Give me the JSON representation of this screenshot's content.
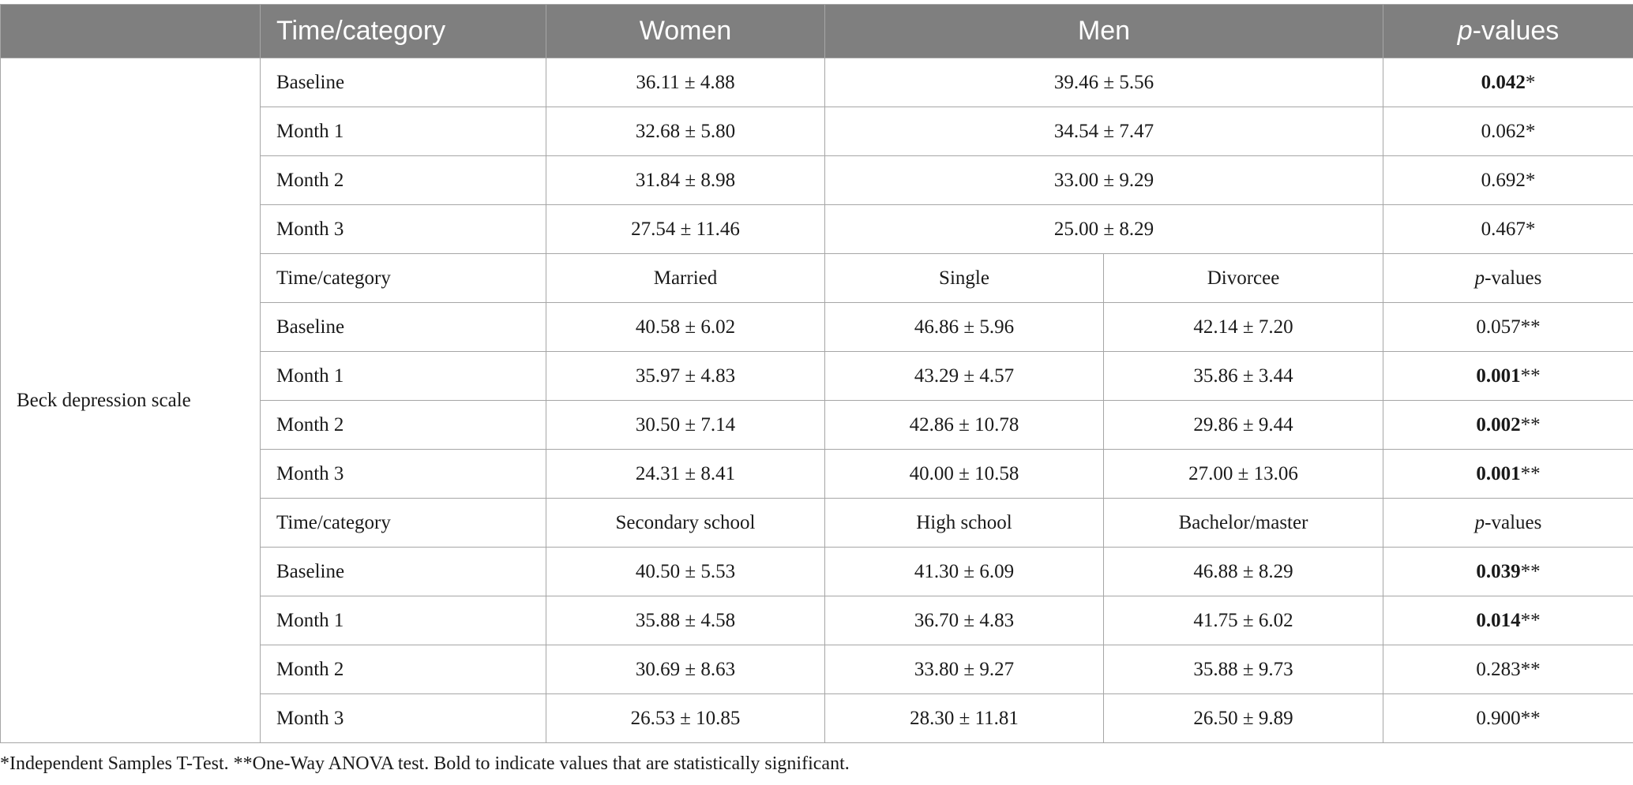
{
  "header": {
    "time_category": "Time/category",
    "col_women": "Women",
    "col_men": "Men",
    "p_italic": "p",
    "p_rest": "-values"
  },
  "scale_label": "Beck depression scale",
  "section1": {
    "rows": [
      {
        "time": "Baseline",
        "women": "36.11 ± 4.88",
        "men": "39.46 ± 5.56",
        "p_num": "0.042",
        "p_mark": "*",
        "bold": true
      },
      {
        "time": "Month 1",
        "women": "32.68 ± 5.80",
        "men": "34.54 ± 7.47",
        "p_num": "0.062",
        "p_mark": "*",
        "bold": false
      },
      {
        "time": "Month 2",
        "women": "31.84 ± 8.98",
        "men": "33.00 ± 9.29",
        "p_num": "0.692",
        "p_mark": "*",
        "bold": false
      },
      {
        "time": "Month 3",
        "women": "27.54 ± 11.46",
        "men": "25.00 ± 8.29",
        "p_num": "0.467",
        "p_mark": "*",
        "bold": false
      }
    ]
  },
  "section2": {
    "header": {
      "time_category": "Time/category",
      "c1": "Married",
      "c2": "Single",
      "c3": "Divorcee",
      "p_italic": "p",
      "p_rest": "-values"
    },
    "rows": [
      {
        "time": "Baseline",
        "c1": "40.58 ± 6.02",
        "c2": "46.86 ± 5.96",
        "c3": "42.14 ± 7.20",
        "p_num": "0.057",
        "p_mark": "**",
        "bold": false
      },
      {
        "time": "Month 1",
        "c1": "35.97 ± 4.83",
        "c2": "43.29 ± 4.57",
        "c3": "35.86 ± 3.44",
        "p_num": "0.001",
        "p_mark": "**",
        "bold": true
      },
      {
        "time": "Month 2",
        "c1": "30.50 ± 7.14",
        "c2": "42.86 ± 10.78",
        "c3": "29.86 ± 9.44",
        "p_num": "0.002",
        "p_mark": "**",
        "bold": true
      },
      {
        "time": "Month 3",
        "c1": "24.31 ± 8.41",
        "c2": "40.00 ± 10.58",
        "c3": "27.00 ± 13.06",
        "p_num": "0.001",
        "p_mark": "**",
        "bold": true
      }
    ]
  },
  "section3": {
    "header": {
      "time_category": "Time/category",
      "c1": "Secondary school",
      "c2": "High school",
      "c3": "Bachelor/master",
      "p_italic": "p",
      "p_rest": "-values"
    },
    "rows": [
      {
        "time": "Baseline",
        "c1": "40.50 ± 5.53",
        "c2": "41.30 ± 6.09",
        "c3": "46.88 ± 8.29",
        "p_num": "0.039",
        "p_mark": "**",
        "bold": true
      },
      {
        "time": "Month 1",
        "c1": "35.88 ± 4.58",
        "c2": "36.70 ± 4.83",
        "c3": "41.75 ± 6.02",
        "p_num": "0.014",
        "p_mark": "**",
        "bold": true
      },
      {
        "time": "Month 2",
        "c1": "30.69 ± 8.63",
        "c2": "33.80 ± 9.27",
        "c3": "35.88 ± 9.73",
        "p_num": "0.283",
        "p_mark": "**",
        "bold": false
      },
      {
        "time": "Month 3",
        "c1": "26.53 ± 10.85",
        "c2": "28.30 ± 11.81",
        "c3": "26.50 ± 9.89",
        "p_num": "0.900",
        "p_mark": "**",
        "bold": false
      }
    ]
  },
  "footnote": "*Independent Samples T-Test. **One-Way ANOVA test. Bold to indicate values that are statistically significant."
}
